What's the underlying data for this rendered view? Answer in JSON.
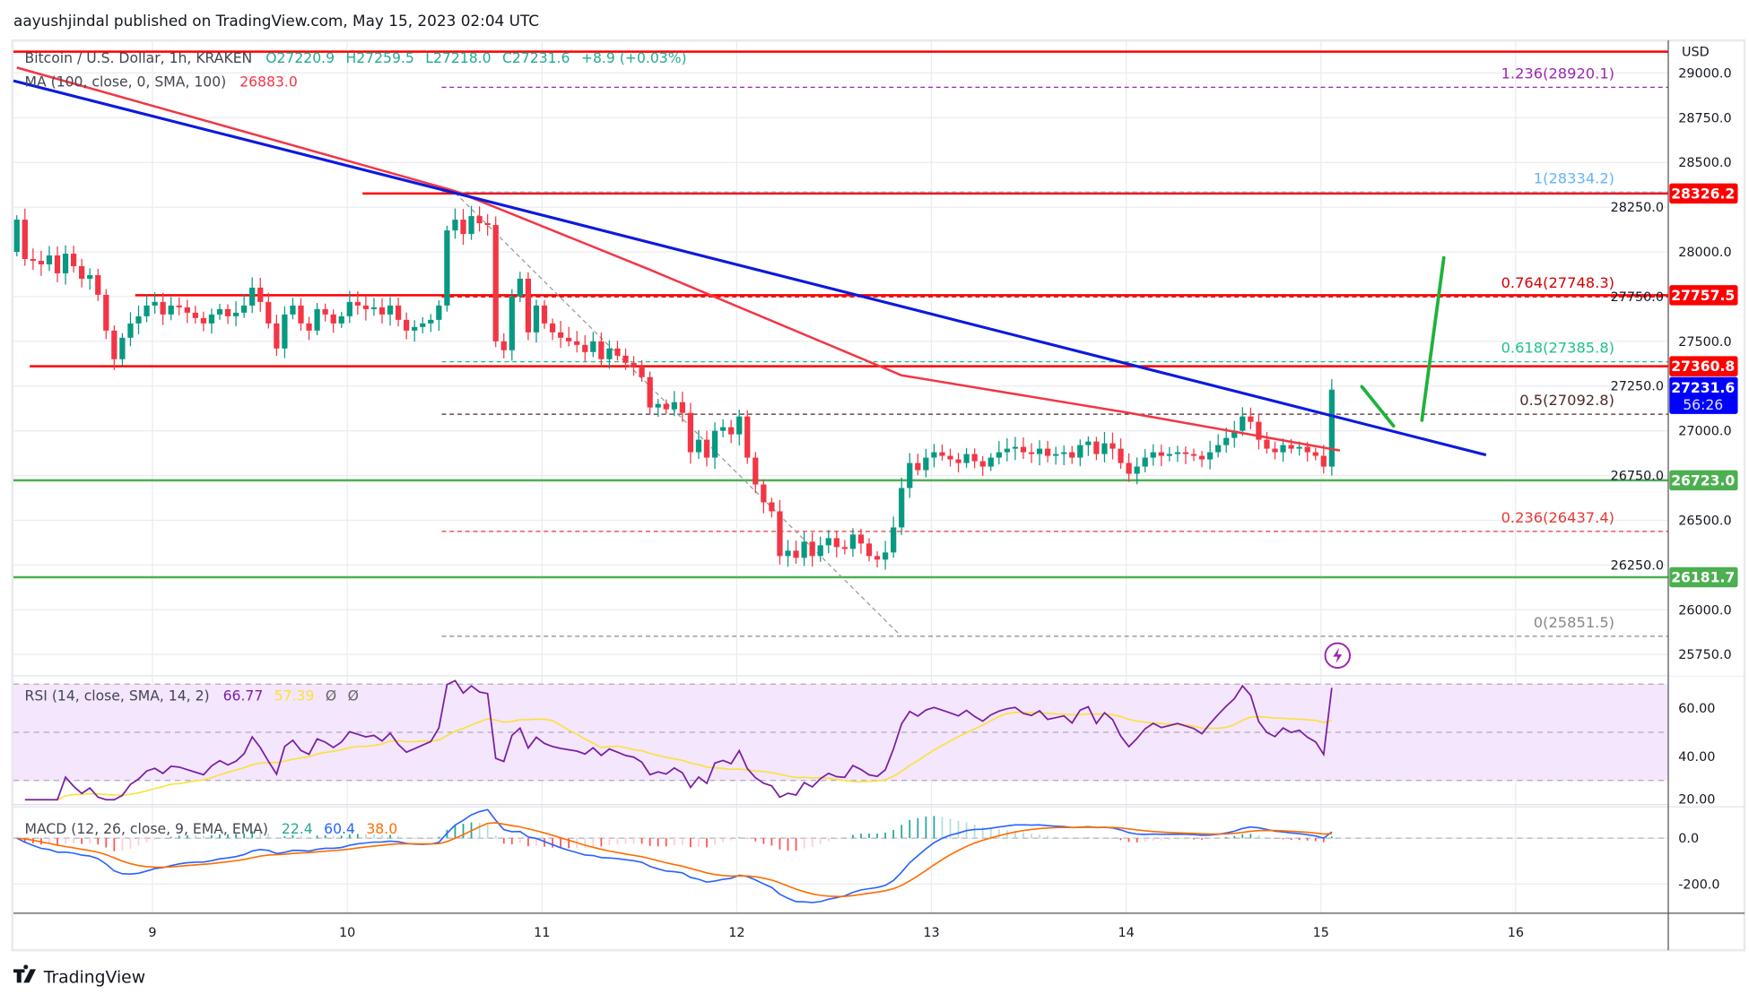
{
  "header": {
    "published": "aayushjindal published on TradingView.com, May 15, 2023 02:04 UTC"
  },
  "legend": {
    "symbol": "Bitcoin / U.S. Dollar, 1h, KRAKEN",
    "open": "O27220.9",
    "high": "H27259.5",
    "low": "L27218.0",
    "close": "C27231.6",
    "change": "+8.9 (+0.03%)",
    "ma_label": "MA (100, close, 0, SMA, 100)",
    "ma_value": "26883.0",
    "rsi_label": "RSI (14, close, SMA, 14, 2)",
    "rsi_value": "66.77",
    "rsi_sma_value": "57.39",
    "rsi_na1": "Ø",
    "rsi_na2": "Ø",
    "macd_label": "MACD (12, 26, close, 9, EMA, EMA)",
    "macd_hist": "22.4",
    "macd_value": "60.4",
    "macd_signal": "38.0"
  },
  "axis": {
    "currency": "USD",
    "price_ticks": [
      "29000.0",
      "28750.0",
      "28500.0",
      "28250.0",
      "28000.0",
      "27750.0",
      "27500.0",
      "27250.0",
      "27000.0",
      "26750.0",
      "26500.0",
      "26250.0",
      "26000.0",
      "25750.0"
    ],
    "rsi_ticks": [
      "60.00",
      "40.00",
      "20.00"
    ],
    "macd_ticks": [
      "0.0",
      "-200.0"
    ],
    "x_ticks": [
      "9",
      "10",
      "11",
      "12",
      "13",
      "14",
      "15",
      "16"
    ]
  },
  "badges": {
    "r1": "28326.2",
    "r2": "27757.5",
    "r3": "27360.8",
    "current": "27231.6",
    "countdown": "56:26",
    "s1": "26723.0",
    "s2": "26181.7"
  },
  "fib": [
    {
      "label": "1.236(28920.1)",
      "price": 28920.1,
      "color": "#9c27b0"
    },
    {
      "label": "1(28334.2)",
      "price": 28334.2,
      "color": "#64b5f6"
    },
    {
      "label": "0.764(27748.3)",
      "price": 27748.3,
      "color": "#d50000"
    },
    {
      "label": "0.618(27385.8)",
      "price": 27385.8,
      "color": "#1ec28b"
    },
    {
      "label": "0.5(27092.8)",
      "price": 27092.8,
      "color": "#4e2a2a"
    },
    {
      "label": "0.236(26437.4)",
      "price": 26437.4,
      "color": "#e53935"
    },
    {
      "label": "0(25851.5)",
      "price": 25851.5,
      "color": "#888888"
    }
  ],
  "footer": {
    "brand": "TradingView"
  },
  "colors": {
    "up": "#089981",
    "down": "#f23645",
    "ma": "#f23645",
    "trend": "#0d1adb",
    "resistance": "#ff0000",
    "support": "#4caf50",
    "rsi": "#7b1fa2",
    "rsi_sma": "#fbe13c",
    "macd": "#2962ff",
    "signal": "#ff6d00",
    "arrow": "#1db33b"
  },
  "chart_data": {
    "type": "candlestick",
    "interval": "1h",
    "x_start": "May 8 07:00",
    "ylim": [
      25700,
      29100
    ],
    "grid": true,
    "closes": [
      28180,
      27960,
      27950,
      27930,
      27980,
      27880,
      27990,
      27920,
      27850,
      27870,
      27760,
      27560,
      27400,
      27520,
      27600,
      27640,
      27700,
      27720,
      27650,
      27700,
      27690,
      27660,
      27630,
      27600,
      27650,
      27680,
      27640,
      27660,
      27700,
      27800,
      27720,
      27600,
      27460,
      27650,
      27700,
      27600,
      27560,
      27680,
      27650,
      27600,
      27640,
      27720,
      27700,
      27680,
      27690,
      27650,
      27700,
      27620,
      27560,
      27580,
      27600,
      27620,
      27700,
      28120,
      28180,
      28100,
      28200,
      28160,
      28150,
      27500,
      27450,
      27750,
      27850,
      27550,
      27700,
      27600,
      27550,
      27520,
      27500,
      27480,
      27440,
      27500,
      27400,
      27460,
      27420,
      27380,
      27360,
      27300,
      27130,
      27150,
      27120,
      27160,
      27100,
      26880,
      26950,
      26850,
      27000,
      27020,
      26980,
      27080,
      26850,
      26700,
      26600,
      26550,
      26300,
      26330,
      26290,
      26380,
      26300,
      26360,
      26400,
      26350,
      26340,
      26420,
      26370,
      26300,
      26280,
      26320,
      26460,
      26680,
      26820,
      26780,
      26850,
      26880,
      26860,
      26840,
      26820,
      26870,
      26830,
      26800,
      26850,
      26880,
      26900,
      26910,
      26880,
      26870,
      26900,
      26860,
      26870,
      26880,
      26850,
      26920,
      26940,
      26870,
      26930,
      26900,
      26820,
      26760,
      26800,
      26850,
      26880,
      26860,
      26870,
      26880,
      26870,
      26860,
      26840,
      26880,
      26920,
      26960,
      27000,
      27080,
      27050,
      26950,
      26900,
      26880,
      26920,
      26900,
      26910,
      26880,
      26860,
      26800,
      27230
    ],
    "ma100": [
      [
        0,
        29030
      ],
      [
        54,
        28340
      ],
      [
        78,
        27900
      ],
      [
        109,
        27310
      ],
      [
        137,
        27100
      ],
      [
        163,
        26890
      ]
    ],
    "trendline": [
      [
        0,
        28956
      ],
      [
        181,
        26865
      ]
    ],
    "horizontal_lines": [
      {
        "price": 29119,
        "from": 0,
        "color": "#ff0000"
      },
      {
        "price": 28326.2,
        "from": 43,
        "color": "#ff0000"
      },
      {
        "price": 27757.5,
        "from": 15,
        "color": "#ff0000"
      },
      {
        "price": 27360.8,
        "from": 2,
        "color": "#ff0000"
      },
      {
        "price": 26723.0,
        "from": 0,
        "color": "#4caf50"
      },
      {
        "price": 26181.7,
        "from": 0,
        "color": "#4caf50"
      }
    ],
    "fib_from": 54,
    "fib_diagonal": [
      [
        54,
        28330
      ],
      [
        109,
        25850
      ]
    ],
    "projection_arrows": [
      [
        [
          165.7,
          27247
        ],
        [
          169.6,
          27027
        ]
      ],
      [
        [
          173.1,
          27059
        ],
        [
          175.8,
          27967
        ]
      ]
    ]
  }
}
